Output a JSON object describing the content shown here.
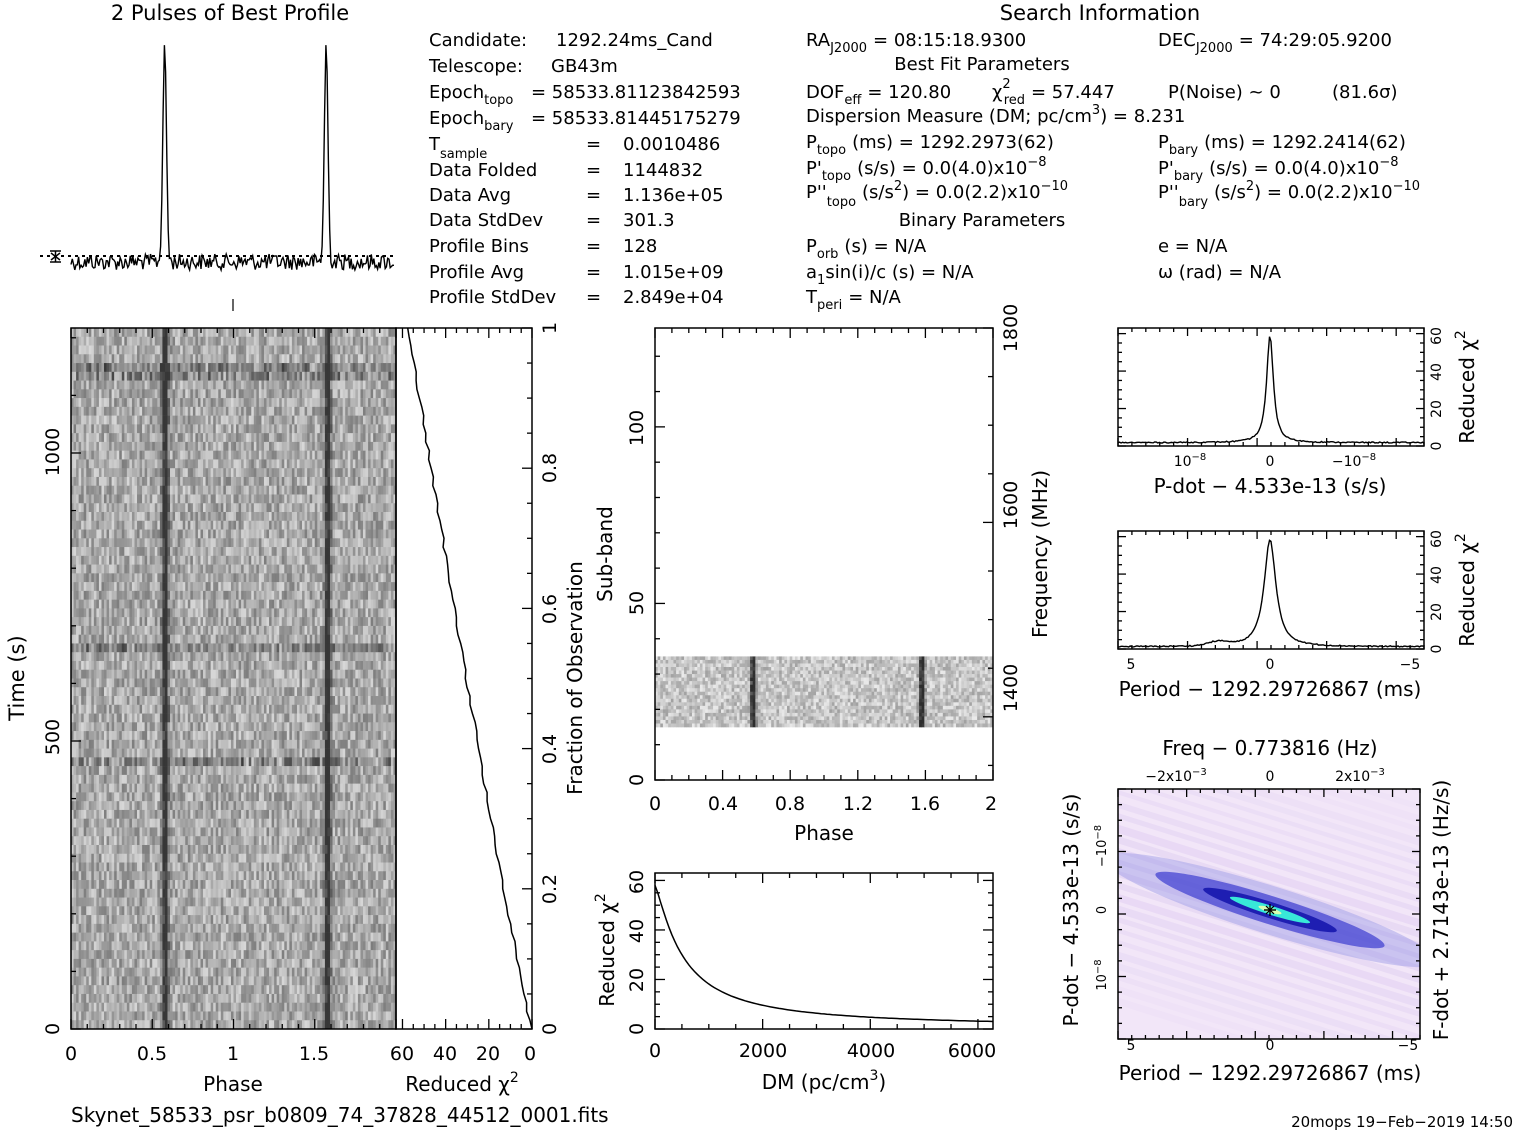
{
  "profile": {
    "title": "2 Pulses of Best Profile",
    "n_pulses": 2,
    "pulse_phase": 0.58
  },
  "header": {
    "search_title": "Search Information",
    "candidate_label": "Candidate:",
    "candidate_value": "1292.24ms_Cand",
    "telescope_label": "Telescope:",
    "telescope_value": "GB43m",
    "epoch_topo": "Epoch",
    "epoch_topo_sub": "topo",
    "epoch_topo_value": "= 58533.81123842593",
    "epoch_bary": "Epoch",
    "epoch_bary_sub": "bary",
    "epoch_bary_value": "= 58533.81445175279",
    "tsample": "T",
    "tsample_sub": "sample",
    "eq": "=",
    "tsample_value": "0.0010486",
    "data_folded_label": "Data Folded",
    "data_folded_value": "1144832",
    "data_avg_label": "Data Avg",
    "data_avg_value": "1.136e+05",
    "data_std_label": "Data StdDev",
    "data_std_value": "301.3",
    "profile_bins_label": "Profile Bins",
    "profile_bins_value": "128",
    "profile_avg_label": "Profile Avg",
    "profile_avg_value": "1.015e+09",
    "profile_std_label": "Profile StdDev",
    "profile_std_value": "2.849e+04",
    "ra": "RA",
    "ra_sub": "J2000",
    "ra_value": "= 08:15:18.9300",
    "dec": "DEC",
    "dec_sub": "J2000",
    "dec_value": "= 74:29:05.9200",
    "best_fit_title": "Best Fit Parameters",
    "dof": "DOF",
    "dof_sub": "eff",
    "dof_value": "= 120.80",
    "chi": "χ",
    "chi_sup": "2",
    "chi_sub": "red",
    "chi_value": "= 57.447",
    "pnoise": "P(Noise) ~ 0",
    "sigma": "(81.6σ)",
    "dm_text": "Dispersion Measure (DM; pc/cm",
    "dm_sup": "3",
    "dm_value": ") = 8.231",
    "p": "P",
    "p_topo_sub": "topo",
    "p_topo_value": "(ms) =  1292.2973(62)",
    "p_bary_sub": "bary",
    "p_bary_value": "(ms) =  1292.2414(62)",
    "pd_topo_prefix": "P'",
    "pd_topo_value": "(s/s) = 0.0(4.0)x10",
    "pd_exp": "−8",
    "pd_bary_prefix": "P'",
    "pd_bary_value": "(s/s) = 0.0(4.0)x10",
    "pdd_topo_prefix": "P''",
    "pdd_topo_value": "(s/s",
    "pdd_sup2": "2",
    "pdd_value_rest": ") = 0.0(2.2)x10",
    "pdd_exp": "−10",
    "pdd_bary_prefix": "P''",
    "binary_title": "Binary Parameters",
    "porb": "P",
    "porb_sub": "orb",
    "porb_value": "(s) = N/A",
    "a1": "a",
    "a1_sub": "1",
    "a1_value": "sin(i)/c (s) = N/A",
    "tperi": "T",
    "tperi_sub": "peri",
    "tperi_value": "= N/A",
    "ecc": "e = N/A",
    "omega": "ω (rad) = N/A"
  },
  "time_phase": {
    "xlabel": "Phase",
    "ylabel": "Time (s)",
    "xticks": [
      "0",
      "0.5",
      "1",
      "1.5"
    ],
    "yticks": [
      "0",
      "500",
      "1000"
    ],
    "ylim": [
      0,
      1217
    ],
    "xlim": [
      0,
      2
    ]
  },
  "chi_time": {
    "xlabel": "Reduced χ",
    "xlabel_sup": "2",
    "ylabel": "Fraction of Observation",
    "xticks": [
      "60",
      "40",
      "20",
      "0"
    ],
    "yticks": [
      "0",
      "0.2",
      "0.4",
      "0.6",
      "0.8",
      "1"
    ]
  },
  "subband": {
    "xlabel": "Phase",
    "ylabel": "Sub-band",
    "rlabel": "Frequency (MHz)",
    "xticks": [
      "0",
      "0.4",
      "0.8",
      "1.2",
      "1.6",
      "2"
    ],
    "yticks": [
      "0",
      "50",
      "100"
    ],
    "rticks": [
      "1400",
      "1600",
      "1800"
    ],
    "band_range": [
      15,
      35
    ]
  },
  "dm_curve": {
    "xlabel": "DM (pc/cm",
    "xlabel_sup": "3",
    "xlabel_end": ")",
    "ylabel": "Reduced χ",
    "ylabel_sup": "2",
    "xticks": [
      "0",
      "2000",
      "4000",
      "6000"
    ],
    "yticks": [
      "0",
      "20",
      "40",
      "60"
    ]
  },
  "pdot_curve": {
    "xlabel": "P-dot − 4.533e-13 (s/s)",
    "ylabel": "Reduced χ",
    "ylabel_sup": "2",
    "xtick_l": "10",
    "xtick_l_exp": "−8",
    "xtick_c": "0",
    "xtick_r": "−10",
    "xtick_r_exp": "−8",
    "yticks": [
      "0",
      "20",
      "40",
      "60"
    ]
  },
  "period_curve": {
    "xlabel": "Period − 1292.29726867 (ms)",
    "ylabel": "Reduced χ",
    "ylabel_sup": "2",
    "xticks": [
      "5",
      "0",
      "−5"
    ],
    "yticks": [
      "0",
      "20",
      "40",
      "60"
    ]
  },
  "map": {
    "title": "Freq − 0.773816 (Hz)",
    "xlabel": "Period − 1292.29726867 (ms)",
    "ylabel": "P-dot − 4.533e-13 (s/s)",
    "rlabel": "F-dot + 2.7143e-13 (Hz/s)",
    "xticks": [
      "5",
      "0",
      "−5"
    ],
    "top_tick_l": "−2x10",
    "top_tick_c": "0",
    "top_tick_r": "2x10",
    "top_exp": "−3",
    "lticks": [
      "−10",
      "0",
      "10"
    ],
    "l_exp": "−8"
  },
  "footer": {
    "filename": "Skynet_58533_psr_b0809_74_37828_44512_0001.fits",
    "stamp": "20mops  19−Feb−2019 14:50"
  },
  "colors": {
    "ink": "#000000",
    "map_bg": "#f2e6f8",
    "map_blue": "#1a1ab0",
    "map_cyan": "#38e8d8"
  }
}
